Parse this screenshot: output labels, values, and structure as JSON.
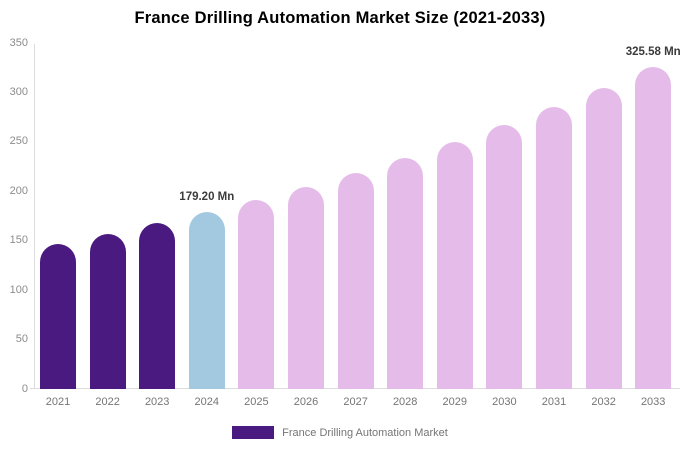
{
  "chart_data": {
    "type": "bar",
    "title": "France Drilling Automation Market Size (2021-2033)",
    "unit": "Mn",
    "categories": [
      "2021",
      "2022",
      "2023",
      "2024",
      "2025",
      "2026",
      "2027",
      "2028",
      "2029",
      "2030",
      "2031",
      "2032",
      "2033"
    ],
    "values": [
      146.9,
      156.9,
      167.7,
      179.2,
      191.5,
      204.6,
      218.6,
      233.6,
      249.6,
      266.7,
      285.0,
      304.6,
      325.58
    ],
    "segments": [
      "past",
      "past",
      "past",
      "current",
      "forecast",
      "forecast",
      "forecast",
      "forecast",
      "forecast",
      "forecast",
      "forecast",
      "forecast",
      "forecast"
    ],
    "colors": {
      "past": "#4B1A80",
      "current": "#A3C9E1",
      "forecast": "#E5BCE9"
    },
    "ylim": [
      0,
      350
    ],
    "yticks": [
      0,
      50,
      100,
      150,
      200,
      250,
      300,
      350
    ],
    "grid": false,
    "legend_position": "bottom",
    "annotations": [
      {
        "index": 3,
        "label": "179.20 Mn"
      },
      {
        "index": 12,
        "label": "325.58 Mn"
      }
    ],
    "xlabel": "",
    "ylabel": ""
  },
  "legend": {
    "label": "France Drilling Automation Market",
    "swatch_color": "#4B1A80"
  },
  "axis": {
    "tick_color": "#8c8c8c",
    "line_color": "#dcdcdc"
  }
}
